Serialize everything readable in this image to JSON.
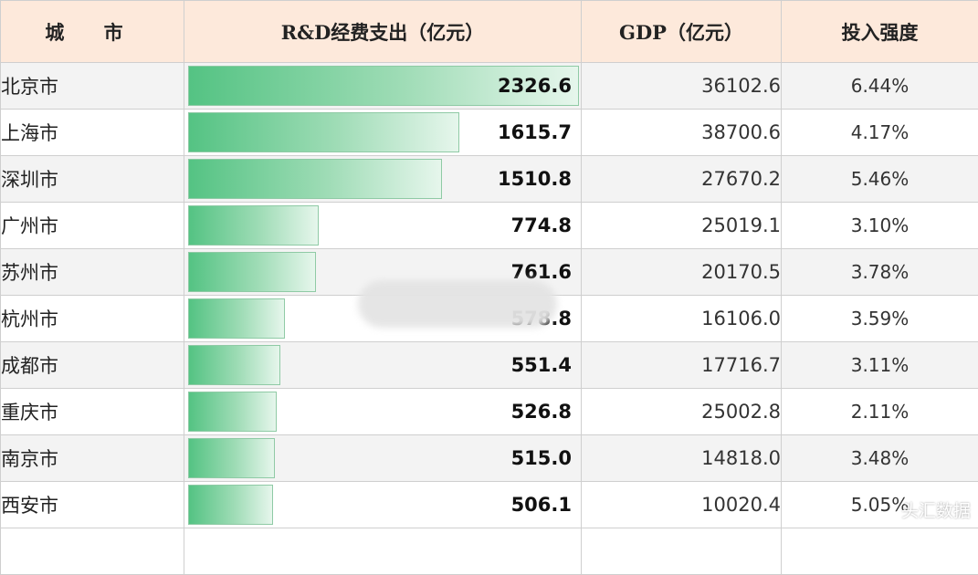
{
  "table": {
    "headers": {
      "city": "城 市",
      "rd": "R&D经费支出（亿元）",
      "gdp": "GDP（亿元）",
      "intensity": "投入强度"
    }
  },
  "chart_data": {
    "type": "table",
    "columns": [
      "城 市",
      "R&D经费支出（亿元）",
      "GDP（亿元）",
      "投入强度"
    ],
    "rows": [
      {
        "city": "北京市",
        "rd": 2326.6,
        "rd_label": "2326.6",
        "gdp": "36102.6",
        "intensity": "6.44%"
      },
      {
        "city": "上海市",
        "rd": 1615.7,
        "rd_label": "1615.7",
        "gdp": "38700.6",
        "intensity": "4.17%"
      },
      {
        "city": "深圳市",
        "rd": 1510.8,
        "rd_label": "1510.8",
        "gdp": "27670.2",
        "intensity": "5.46%"
      },
      {
        "city": "广州市",
        "rd": 774.8,
        "rd_label": "774.8",
        "gdp": "25019.1",
        "intensity": "3.10%"
      },
      {
        "city": "苏州市",
        "rd": 761.6,
        "rd_label": "761.6",
        "gdp": "20170.5",
        "intensity": "3.78%"
      },
      {
        "city": "杭州市",
        "rd": 578.8,
        "rd_label": "578.8",
        "gdp": "16106.0",
        "intensity": "3.59%"
      },
      {
        "city": "成都市",
        "rd": 551.4,
        "rd_label": "551.4",
        "gdp": "17716.7",
        "intensity": "3.11%"
      },
      {
        "city": "重庆市",
        "rd": 526.8,
        "rd_label": "526.8",
        "gdp": "25002.8",
        "intensity": "2.11%"
      },
      {
        "city": "南京市",
        "rd": 515.0,
        "rd_label": "515.0",
        "gdp": "14818.0",
        "intensity": "3.48%"
      },
      {
        "city": "西安市",
        "rd": 506.1,
        "rd_label": "506.1",
        "gdp": "10020.4",
        "intensity": "5.05%"
      }
    ],
    "bar_max": 2326.6,
    "bar_color": "#54c383"
  },
  "watermark": "头汇数据"
}
